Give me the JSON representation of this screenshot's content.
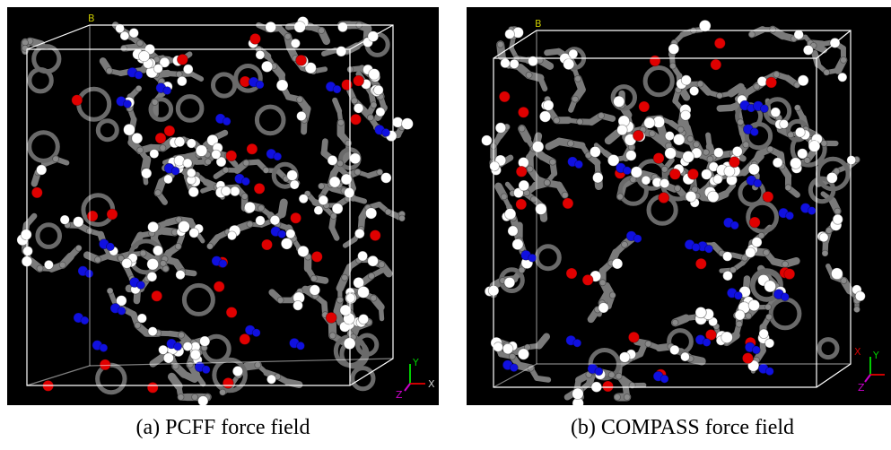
{
  "panels": [
    {
      "id": "a",
      "caption": "(a) PCFF force field",
      "cell_label": "B",
      "axis_labels": {
        "y": "Y",
        "x": "X",
        "z": "Z"
      }
    },
    {
      "id": "b",
      "caption": "(b) COMPASS force field",
      "cell_label": "B",
      "axis_labels": {
        "y": "Y",
        "x": "X",
        "z": "Z"
      }
    }
  ],
  "colors": {
    "background": "#000000",
    "carbon": "#7a7a7a",
    "hydrogen": "#ffffff",
    "oxygen": "#e00000",
    "nitrogen": "#1010e0",
    "cell_box": "#ffffff",
    "axis_y": "#00cc00",
    "axis_x": "#cc0000",
    "axis_z": "#cc00cc",
    "cell_label": "#c8c800"
  }
}
